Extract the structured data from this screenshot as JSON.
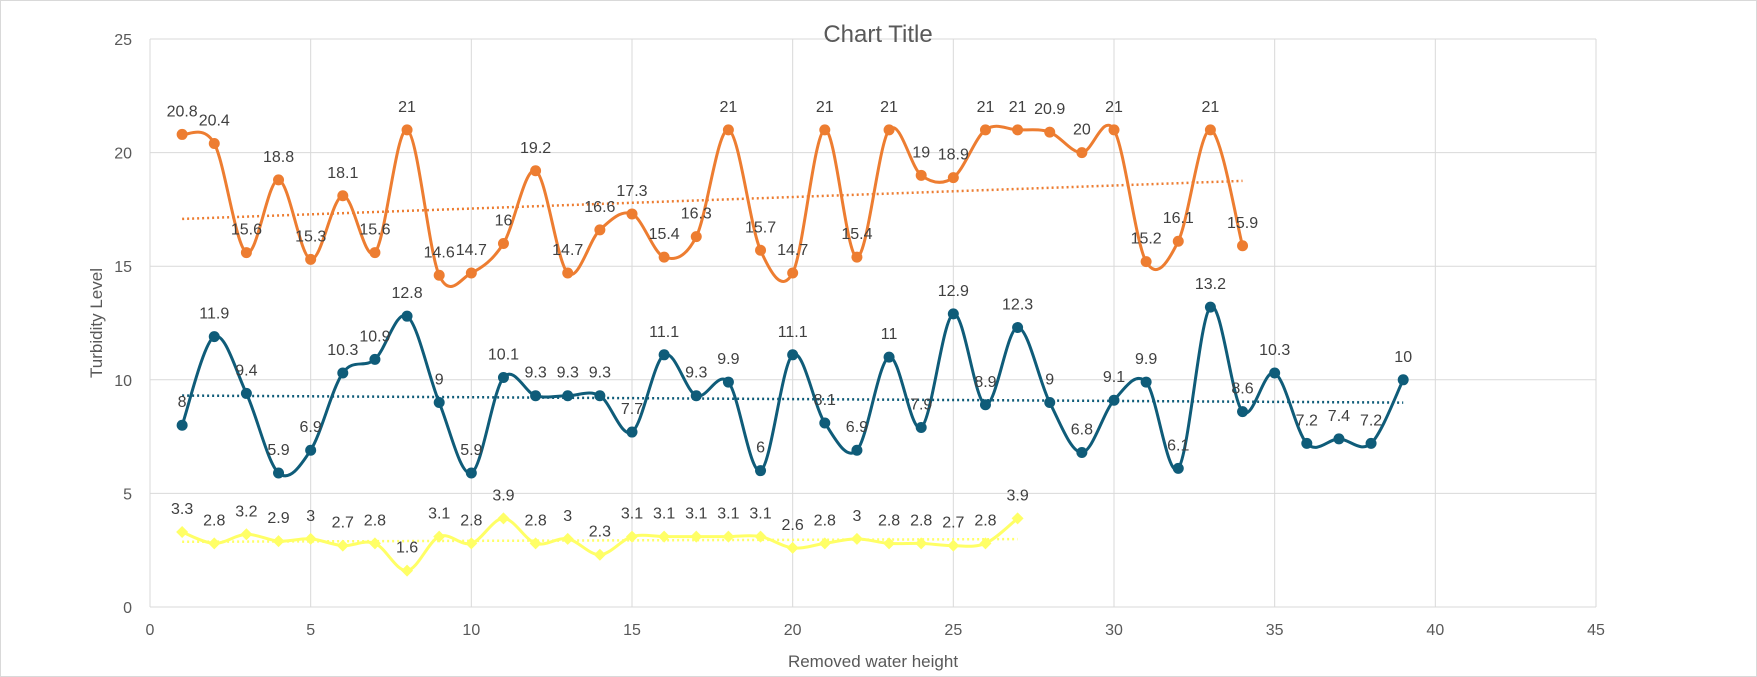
{
  "chart_data": {
    "type": "line",
    "title": "Chart Title",
    "xlabel": "Removed water height",
    "ylabel": "Turbidity Level",
    "xlim": [
      0,
      45
    ],
    "ylim": [
      0,
      25
    ],
    "x_ticks": [
      "0",
      "5",
      "10",
      "15",
      "20",
      "25",
      "30",
      "35",
      "40",
      "45"
    ],
    "y_ticks": [
      "0",
      "5",
      "10",
      "15",
      "20",
      "25"
    ],
    "grid": true,
    "legend": "none",
    "smoothed": true,
    "trendlines": "linear, dotted",
    "series": [
      {
        "color": "#ed7d31",
        "marker": "circle",
        "x": [
          1,
          2,
          3,
          4,
          5,
          6,
          7,
          8,
          9,
          10,
          11,
          12,
          13,
          14,
          15,
          16,
          17,
          18,
          19,
          20,
          21,
          22,
          23,
          24,
          25,
          26,
          27,
          28,
          29,
          30,
          31,
          32,
          33,
          34
        ],
        "values": [
          20.8,
          20.4,
          15.6,
          18.8,
          15.3,
          18.1,
          15.6,
          21,
          14.6,
          14.7,
          16,
          19.2,
          14.7,
          16.6,
          17.3,
          15.4,
          16.3,
          21,
          15.7,
          14.7,
          21,
          15.4,
          21,
          19,
          18.9,
          21,
          21,
          20.9,
          20,
          21,
          15.2,
          16.1,
          21,
          15.9
        ],
        "labels": [
          "20.8",
          "20.4",
          "15.6",
          "18.8",
          "15.3",
          "18.1",
          "15.6",
          "21",
          "14.6",
          "14.7",
          "16",
          "19.2",
          "14.7",
          "16.6",
          "17.3",
          "15.4",
          "16.3",
          "21",
          "15.7",
          "14.7",
          "21",
          "15.4",
          "21",
          "19",
          "18.9",
          "21",
          "21",
          "20.9",
          "20",
          "21",
          "15.2",
          "16.1",
          "21",
          "15.9"
        ]
      },
      {
        "color": "#0f5c79",
        "marker": "circle",
        "x": [
          1,
          2,
          3,
          4,
          5,
          6,
          7,
          8,
          9,
          10,
          11,
          12,
          13,
          14,
          15,
          16,
          17,
          18,
          19,
          20,
          21,
          22,
          23,
          24,
          25,
          26,
          27,
          28,
          29,
          30,
          31,
          32,
          33,
          34,
          35,
          36,
          37,
          38,
          39
        ],
        "values": [
          8,
          11.9,
          9.4,
          5.9,
          6.9,
          10.3,
          10.9,
          12.8,
          9,
          5.9,
          10.1,
          9.3,
          9.3,
          9.3,
          7.7,
          11.1,
          9.3,
          9.9,
          6,
          11.1,
          8.1,
          6.9,
          11,
          7.9,
          12.9,
          8.9,
          12.3,
          9,
          6.8,
          9.1,
          9.9,
          6.1,
          13.2,
          8.6,
          10.3,
          7.2,
          7.4,
          7.2,
          10
        ],
        "labels": [
          "8",
          "11.9",
          "9.4",
          "5.9",
          "6.9",
          "10.3",
          "10.9",
          "12.8",
          "9",
          "5.9",
          "10.1",
          "9.3",
          "9.3",
          "9.3",
          "7.7",
          "11.1",
          "9.3",
          "9.9",
          "6",
          "11.1",
          "8.1",
          "6.9",
          "11",
          "7.9",
          "12.9",
          "8.9",
          "12.3",
          "9",
          "6.8",
          "9.1",
          "9.9",
          "6.1",
          "13.2",
          "8.6",
          "10.3",
          "7.2",
          "7.4",
          "7.2",
          "10"
        ]
      },
      {
        "color": "#ffff66",
        "marker": "diamond",
        "x": [
          1,
          2,
          3,
          4,
          5,
          6,
          7,
          8,
          9,
          10,
          11,
          12,
          13,
          14,
          15,
          16,
          17,
          18,
          19,
          20,
          21,
          22,
          23,
          24,
          25,
          26,
          27
        ],
        "values": [
          3.3,
          2.8,
          3.2,
          2.9,
          3,
          2.7,
          2.8,
          1.6,
          3.1,
          2.8,
          3.9,
          2.8,
          3,
          2.3,
          3.1,
          3.1,
          3.1,
          3.1,
          3.1,
          2.6,
          2.8,
          3,
          2.8,
          2.8,
          2.7,
          2.8,
          3.9
        ],
        "labels": [
          "3.3",
          "2.8",
          "3.2",
          "2.9",
          "3",
          "2.7",
          "2.8",
          "1.6",
          "3.1",
          "2.8",
          "3.9",
          "2.8",
          "3",
          "2.3",
          "3.1",
          "3.1",
          "3.1",
          "3.1",
          "3.1",
          "2.6",
          "2.8",
          "3",
          "2.8",
          "2.8",
          "2.7",
          "2.8",
          "3.9"
        ]
      }
    ]
  }
}
